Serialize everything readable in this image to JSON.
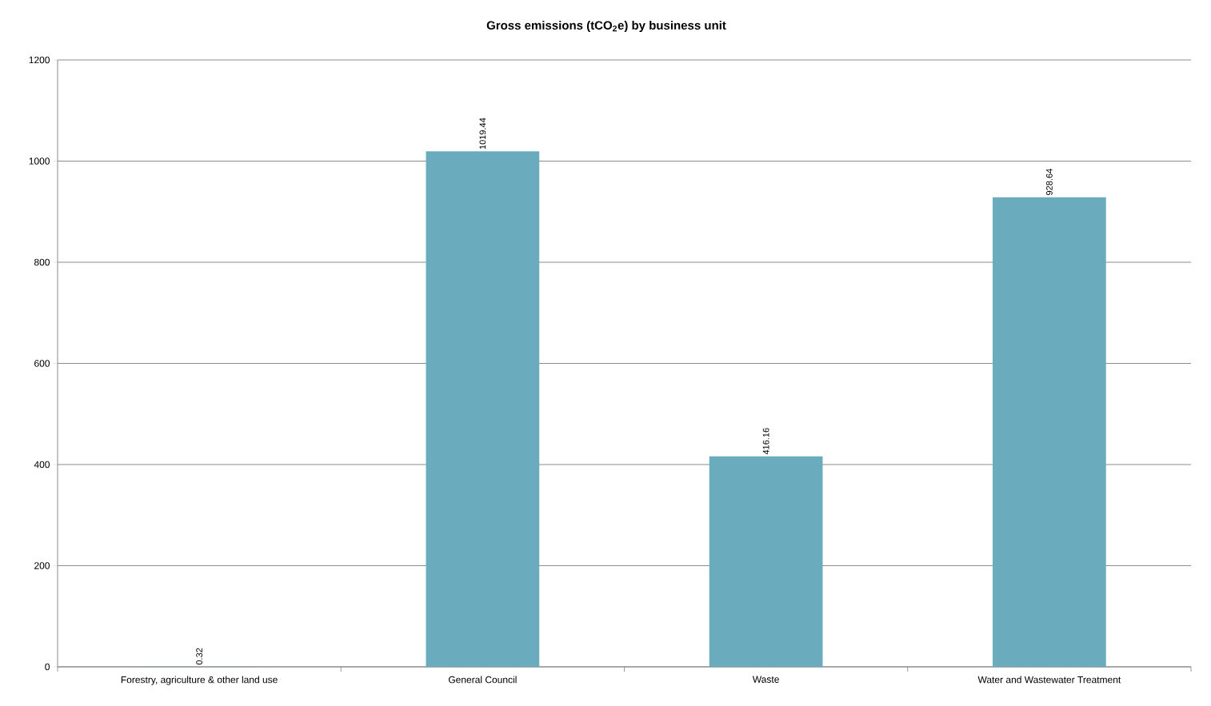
{
  "chart_data": {
    "type": "bar",
    "title": "Gross emissions (tCO$_{2}$e) by business unit",
    "categories": [
      "Forestry, agriculture & other land use",
      "General Council",
      "Waste",
      "Water and Wastewater Treatment"
    ],
    "values": [
      0.32,
      1019.44,
      416.16,
      928.64
    ],
    "color": "#6aacbe",
    "ylim": [
      0,
      1200
    ],
    "yticks": [
      0,
      200,
      400,
      600,
      800,
      1000,
      1200
    ],
    "grid": "y",
    "data_labels": true
  }
}
